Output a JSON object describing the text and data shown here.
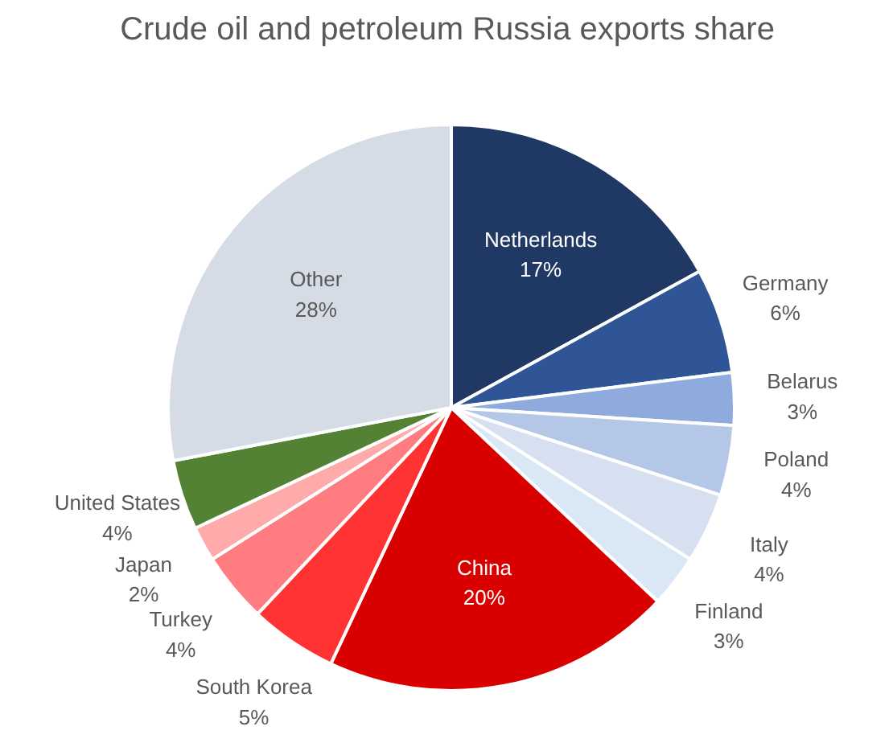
{
  "chart_data": {
    "type": "pie",
    "title": "Crude oil and petroleum Russia exports share",
    "categories": [
      "Netherlands",
      "Germany",
      "Belarus",
      "Poland",
      "Italy",
      "Finland",
      "China",
      "South Korea",
      "Turkey",
      "Japan",
      "United States",
      "Other"
    ],
    "values": [
      17,
      6,
      3,
      4,
      4,
      3,
      20,
      5,
      4,
      2,
      4,
      28
    ],
    "value_labels": [
      "17%",
      "6%",
      "3%",
      "4%",
      "4%",
      "3%",
      "20%",
      "5%",
      "4%",
      "2%",
      "4%",
      "28%"
    ],
    "colors": [
      "#203864",
      "#2f5597",
      "#8faadc",
      "#b4c7e7",
      "#d6e0f0",
      "#dae8f6",
      "#d90000",
      "#ff3333",
      "#ff7c80",
      "#ffabab",
      "#548235",
      "#d6dce5"
    ]
  }
}
